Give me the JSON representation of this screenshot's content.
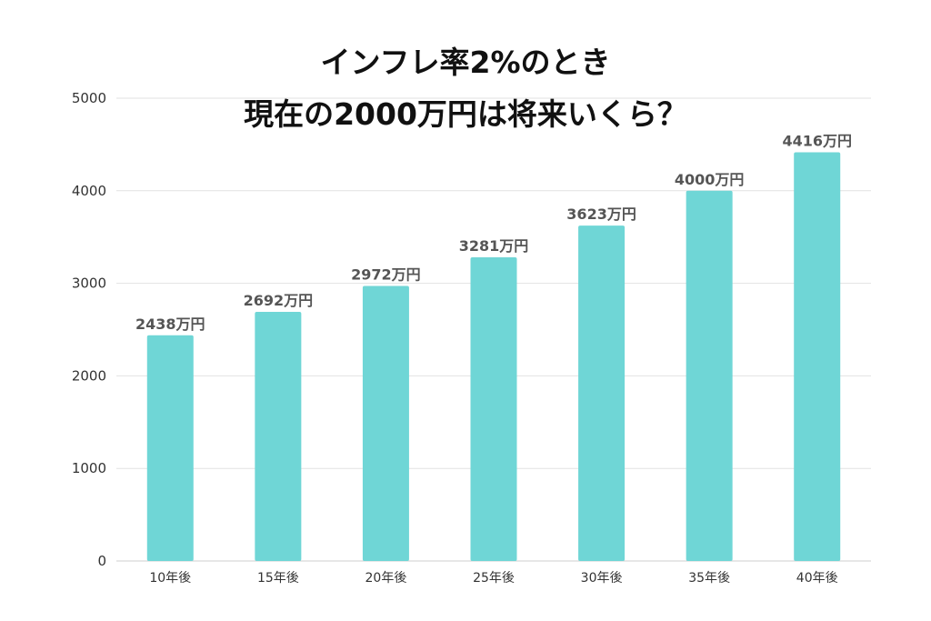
{
  "chart_data": {
    "type": "bar",
    "title_lines": [
      "インフレ率2%のとき",
      "現在の2000万円は将来いくら？"
    ],
    "categories": [
      "10年後",
      "15年後",
      "20年後",
      "25年後",
      "30年後",
      "35年後",
      "40年後"
    ],
    "values": [
      2438,
      2692,
      2972,
      3281,
      3623,
      4000,
      4416
    ],
    "data_labels": [
      "2438万円",
      "2692万円",
      "2972万円",
      "3281万円",
      "3623万円",
      "4000万円",
      "4416万円"
    ],
    "y_ticks": [
      "0",
      "1000",
      "2000",
      "3000",
      "4000",
      "5000"
    ],
    "ylim": [
      0,
      5000
    ],
    "xlabel": "",
    "ylabel": "",
    "grid": true,
    "legend": "none",
    "bar_color": "#6fd6d6"
  }
}
